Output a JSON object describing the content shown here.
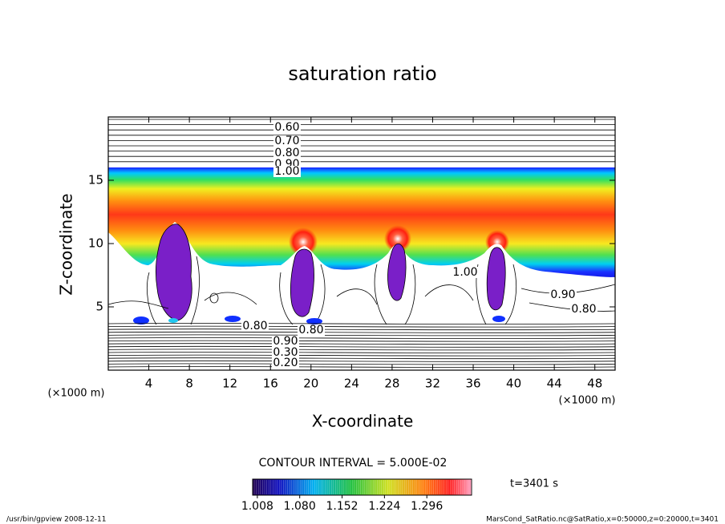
{
  "chart_data": {
    "type": "contour",
    "title": "saturation ratio",
    "x_label": "X-coordinate",
    "y_label": "Z-coordinate",
    "x_unit": "(×1000 m)",
    "xlim": [
      0,
      50
    ],
    "xticks": [
      4,
      8,
      12,
      16,
      20,
      24,
      28,
      32,
      36,
      40,
      44,
      48
    ],
    "ylim": [
      0,
      20
    ],
    "yticks": [
      5,
      10,
      15
    ],
    "contour_levels": [
      {
        "value": 0.2,
        "label": "0.20"
      },
      {
        "value": 0.3,
        "label": "0.30"
      },
      {
        "value": 0.6,
        "label": "0.60"
      },
      {
        "value": 0.7,
        "label": "0.70"
      },
      {
        "value": 0.8,
        "label": "0.80"
      },
      {
        "value": 0.9,
        "label": "0.90"
      },
      {
        "value": 1,
        "label": "1.00"
      }
    ],
    "contour_interval": "CONTOUR INTERVAL = 5.000E-02",
    "clim": [
      1.0,
      1.372
    ],
    "colorbar_ticks": [
      1.008,
      {
        "value": 1.08,
        "label": "1.080"
      },
      1.152,
      1.224,
      1.296
    ],
    "time_label": "t=3401 s",
    "footer_left": "/usr/bin/gpview   2008-12-11",
    "footer_right": "MarsCond_SatRatio.nc@SatRatio,x=0:50000,z=0:20000,t=3401"
  }
}
